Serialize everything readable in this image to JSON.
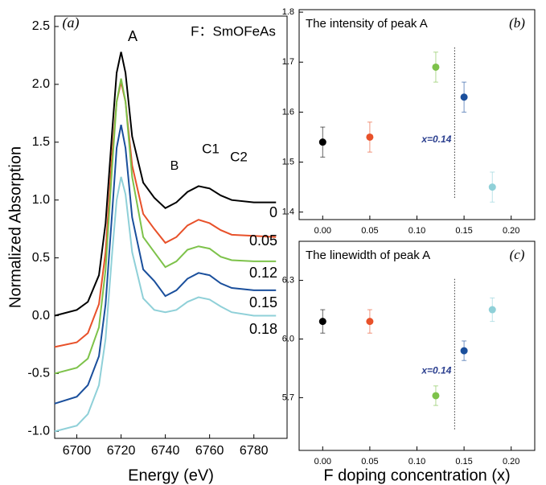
{
  "chart_data": [
    {
      "type": "line",
      "panel_label": "(a)",
      "x_label": "Energy (eV)",
      "y_label": "Normalized Absorption",
      "annotations": [
        "A",
        "F：SmOFeAs",
        "B",
        "C1",
        "C2"
      ],
      "x": [
        6690,
        6700,
        6705,
        6710,
        6713,
        6716,
        6718,
        6720,
        6722,
        6725,
        6730,
        6735,
        6740,
        6745,
        6750,
        6755,
        6760,
        6765,
        6770,
        6780,
        6790
      ],
      "series": [
        {
          "name": "0",
          "color": "#000000",
          "values": [
            0.0,
            0.05,
            0.12,
            0.35,
            0.8,
            1.6,
            2.1,
            2.28,
            2.1,
            1.55,
            1.15,
            1.02,
            0.93,
            0.98,
            1.07,
            1.12,
            1.1,
            1.04,
            1.0,
            0.98,
            0.98
          ]
        },
        {
          "name": "0.05",
          "color": "#e8512a",
          "values": [
            -0.27,
            -0.23,
            -0.15,
            0.1,
            0.55,
            1.4,
            1.85,
            2.02,
            1.85,
            1.3,
            0.88,
            0.75,
            0.63,
            0.68,
            0.78,
            0.83,
            0.8,
            0.74,
            0.7,
            0.69,
            0.68
          ]
        },
        {
          "name": "0.12",
          "color": "#7dc24a",
          "values": [
            -0.5,
            -0.45,
            -0.37,
            -0.1,
            0.4,
            1.3,
            1.85,
            2.05,
            1.85,
            1.2,
            0.68,
            0.55,
            0.42,
            0.47,
            0.57,
            0.6,
            0.58,
            0.51,
            0.48,
            0.47,
            0.47
          ]
        },
        {
          "name": "0.15",
          "color": "#1a4f9c",
          "values": [
            -0.76,
            -0.7,
            -0.6,
            -0.35,
            0.1,
            0.9,
            1.45,
            1.65,
            1.45,
            0.85,
            0.4,
            0.3,
            0.17,
            0.22,
            0.32,
            0.37,
            0.35,
            0.28,
            0.24,
            0.22,
            0.22
          ]
        },
        {
          "name": "0.18",
          "color": "#8fd0d8",
          "values": [
            -1.0,
            -0.95,
            -0.85,
            -0.6,
            -0.2,
            0.55,
            1.0,
            1.2,
            1.05,
            0.55,
            0.15,
            0.05,
            0.03,
            0.05,
            0.12,
            0.16,
            0.14,
            0.08,
            0.03,
            0.0,
            0.0
          ]
        }
      ],
      "xlim": [
        6690,
        6795
      ],
      "xticks": [
        6700,
        6720,
        6740,
        6760,
        6780
      ],
      "ylim": [
        -1.06,
        2.59
      ],
      "yticks": [
        {
          "value": -1.0,
          "label": "-1.0"
        },
        -0.5,
        {
          "value": 0.0,
          "label": "0.0"
        },
        0.5,
        {
          "value": 1.0,
          "label": "1.0"
        },
        1.5,
        {
          "value": 2.0,
          "label": "2.0"
        },
        2.5
      ]
    },
    {
      "type": "scatter",
      "title": "The intensity of peak A",
      "panel_label": "(b)",
      "x": [
        0.0,
        0.05,
        0.12,
        0.15,
        0.18
      ],
      "values": [
        1.54,
        1.55,
        1.69,
        1.63,
        1.45
      ],
      "errors": [
        0.03,
        0.03,
        0.03,
        0.03,
        0.03
      ],
      "colors": [
        "#000000",
        "#e8512a",
        "#7dc24a",
        "#1a4f9c",
        "#8fd0d8"
      ],
      "threshold": 0.14,
      "threshold_label": "x=0.14",
      "xlim": [
        -0.025,
        0.225
      ],
      "xticks": [
        {
          "value": 0.0,
          "label": "0.00"
        },
        0.05,
        {
          "value": 0.1,
          "label": "0.10"
        },
        0.15,
        {
          "value": 0.2,
          "label": "0.20"
        }
      ],
      "ylim": [
        1.385,
        1.805
      ],
      "yticks": [
        1.4,
        1.5,
        1.6,
        1.7,
        1.8
      ]
    },
    {
      "type": "scatter",
      "title": "The linewidth of peak A",
      "panel_label": "(c)",
      "x_label": "F doping concentration (x)",
      "x": [
        0.0,
        0.05,
        0.12,
        0.15,
        0.18
      ],
      "values": [
        6.09,
        6.09,
        5.71,
        5.94,
        6.15
      ],
      "errors": [
        0.06,
        0.06,
        0.05,
        0.05,
        0.06
      ],
      "colors": [
        "#000000",
        "#e8512a",
        "#7dc24a",
        "#1a4f9c",
        "#8fd0d8"
      ],
      "threshold": 0.14,
      "threshold_label": "x=0.14",
      "xlim": [
        -0.025,
        0.225
      ],
      "xticks": [
        {
          "value": 0.0,
          "label": "0.00"
        },
        0.05,
        {
          "value": 0.1,
          "label": "0.10"
        },
        0.15,
        {
          "value": 0.2,
          "label": "0.20"
        }
      ],
      "ylim": [
        5.43,
        6.5
      ],
      "yticks": [
        5.7,
        {
          "value": 6.0,
          "label": "6.0"
        },
        6.3
      ]
    }
  ]
}
